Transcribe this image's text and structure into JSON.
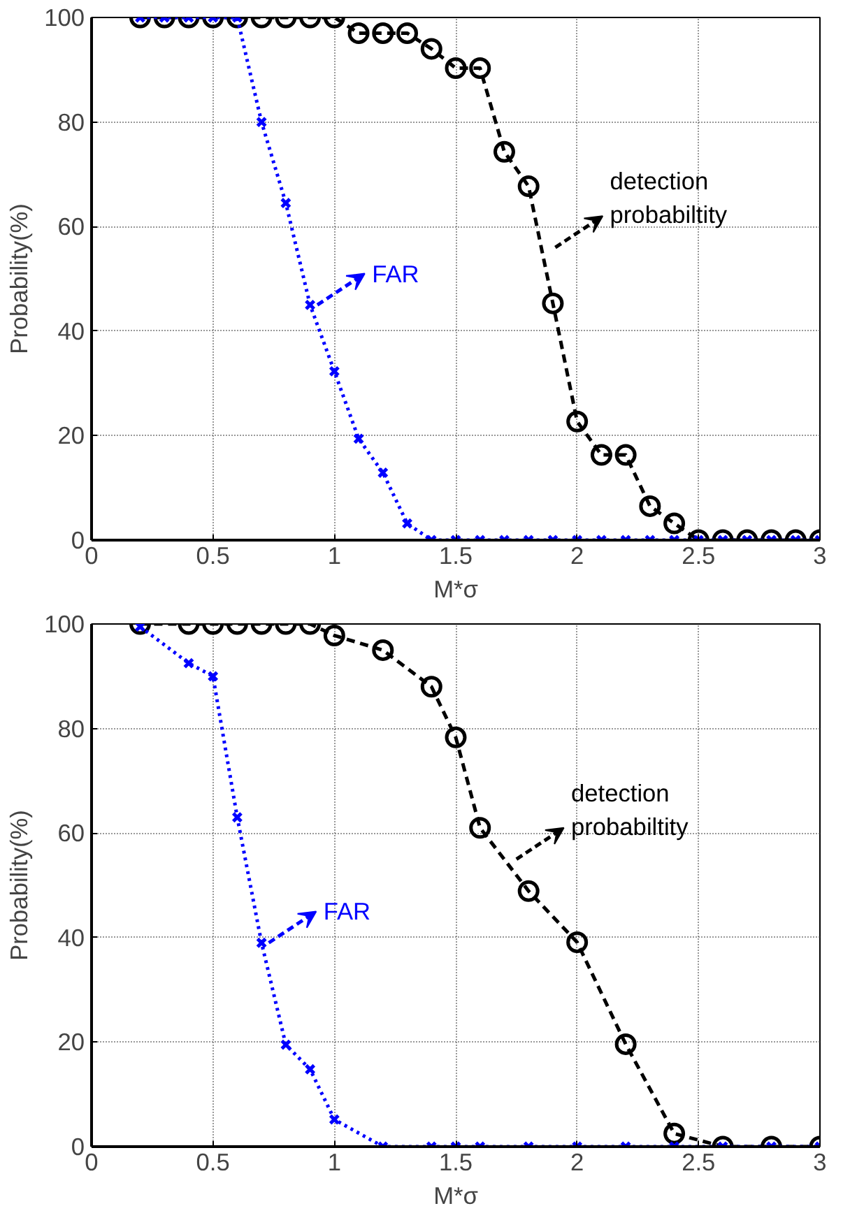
{
  "chart_data": [
    {
      "type": "line",
      "xlabel": "M*σ",
      "ylabel": "Probability(%)",
      "xlim": [
        0,
        3
      ],
      "ylim": [
        0,
        100
      ],
      "xticks": [
        0,
        0.5,
        1,
        1.5,
        2,
        2.5,
        3
      ],
      "yticks": [
        0,
        20,
        40,
        60,
        80,
        100
      ],
      "grid": true,
      "series": [
        {
          "color": "#000000",
          "marker": "circle",
          "line_style": "dashed",
          "x": [
            0.2,
            0.3,
            0.4,
            0.5,
            0.6,
            0.7,
            0.8,
            0.9,
            1.0,
            1.1,
            1.2,
            1.3,
            1.4,
            1.5,
            1.6,
            1.7,
            1.8,
            1.9,
            2.0,
            2.1,
            2.2,
            2.3,
            2.4,
            2.5,
            2.6,
            2.7,
            2.8,
            2.9,
            3.0
          ],
          "values": [
            100,
            100,
            100,
            100,
            100,
            100,
            100,
            100,
            100,
            97,
            97,
            97,
            94,
            90.3,
            90.3,
            74.3,
            67.7,
            45.3,
            22.7,
            16.3,
            16.3,
            6.5,
            3.2,
            0,
            0,
            0,
            0,
            0,
            0
          ]
        },
        {
          "color": "#0000ff",
          "marker": "cross",
          "line_style": "dotted",
          "x": [
            0.2,
            0.3,
            0.4,
            0.5,
            0.6,
            0.7,
            0.8,
            0.9,
            1.0,
            1.1,
            1.2,
            1.3,
            1.4,
            1.5,
            1.6,
            1.7,
            1.8,
            1.9,
            2.0,
            2.1,
            2.2,
            2.3,
            2.4,
            2.5,
            2.6,
            2.7,
            2.8,
            2.9,
            3.0
          ],
          "values": [
            100,
            100,
            100,
            100,
            100,
            80,
            64.5,
            45,
            32.3,
            19.4,
            12.9,
            3.2,
            0,
            0,
            0,
            0,
            0,
            0,
            0,
            0,
            0,
            0,
            0,
            0,
            0,
            0,
            0,
            0,
            0
          ]
        }
      ],
      "annotations": [
        {
          "text": "detection\nprobabiltity",
          "x": 1.88,
          "y": 56
        },
        {
          "text": "FAR",
          "x": 0.9,
          "y": 45
        }
      ]
    },
    {
      "type": "line",
      "xlabel": "M*σ",
      "ylabel": "Probability(%)",
      "xlim": [
        0,
        3
      ],
      "ylim": [
        0,
        100
      ],
      "xticks": [
        0,
        0.5,
        1,
        1.5,
        2,
        2.5,
        3
      ],
      "yticks": [
        0,
        20,
        40,
        60,
        80,
        100
      ],
      "grid": true,
      "series": [
        {
          "color": "#000000",
          "marker": "circle",
          "line_style": "dashed",
          "x": [
            0.2,
            0.4,
            0.5,
            0.6,
            0.7,
            0.8,
            0.9,
            1.0,
            1.2,
            1.4,
            1.5,
            1.6,
            1.8,
            2.0,
            2.2,
            2.4,
            2.6,
            2.8,
            3.0
          ],
          "values": [
            100,
            100,
            100,
            100,
            100,
            100,
            100,
            97.8,
            95,
            88,
            78.3,
            61,
            48.9,
            39.1,
            19.6,
            2.5,
            0,
            0,
            0
          ]
        },
        {
          "color": "#0000ff",
          "marker": "cross",
          "line_style": "dotted",
          "x": [
            0.2,
            0.4,
            0.5,
            0.6,
            0.7,
            0.8,
            0.9,
            1.0,
            1.2,
            1.4,
            1.5,
            1.6,
            1.8,
            2.0,
            2.2,
            2.4,
            2.6,
            2.8,
            3.0
          ],
          "values": [
            99.5,
            92.5,
            90,
            63,
            39,
            19.5,
            14.8,
            5.2,
            0,
            0,
            0,
            0,
            0,
            0,
            0,
            0,
            0,
            0,
            0
          ]
        }
      ],
      "annotations": [
        {
          "text": "detection\nprobabiltity",
          "x": 1.72,
          "y": 55
        },
        {
          "text": "FAR",
          "x": 0.7,
          "y": 39
        }
      ]
    }
  ]
}
